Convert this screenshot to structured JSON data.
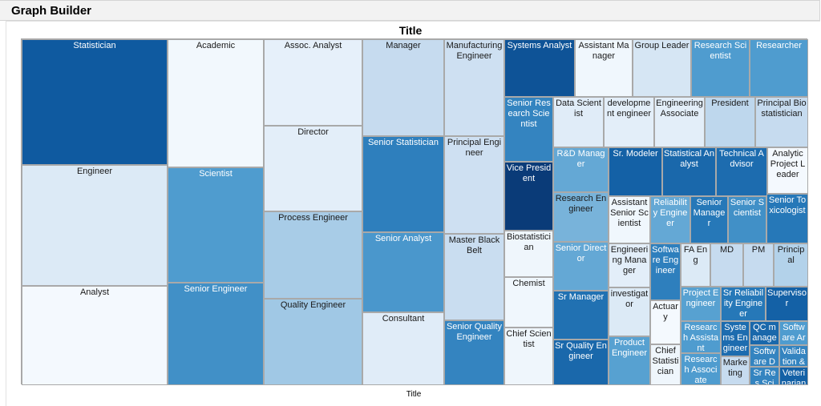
{
  "app": {
    "title": "Graph Builder"
  },
  "chart_data": {
    "type": "treemap",
    "title": "Title",
    "xlabel": "Title",
    "color_scale": {
      "low": "#f7fbff",
      "high": "#08306b"
    },
    "cells": [
      {
        "label": "Statistician",
        "value": 0.88
      },
      {
        "label": "Engineer",
        "value": 0.16
      },
      {
        "label": "Analyst",
        "value": 0.02
      },
      {
        "label": "Academic",
        "value": 0.03
      },
      {
        "label": "Scientist",
        "value": 0.6
      },
      {
        "label": "Senior Engineer",
        "value": 0.65
      },
      {
        "label": "Assoc. Analyst",
        "value": 0.1
      },
      {
        "label": "Director",
        "value": 0.12
      },
      {
        "label": "Process Engineer",
        "value": 0.38
      },
      {
        "label": "Quality Engineer",
        "value": 0.4
      },
      {
        "label": "Manager",
        "value": 0.3
      },
      {
        "label": "Senior Statistician",
        "value": 0.72
      },
      {
        "label": "Senior Analyst",
        "value": 0.62
      },
      {
        "label": "Consultant",
        "value": 0.14
      },
      {
        "label": "Manufacturing Engineer",
        "value": 0.25
      },
      {
        "label": "Principal Engineer",
        "value": 0.25
      },
      {
        "label": "Master Black Belt",
        "value": 0.28
      },
      {
        "label": "Senior Quality Engineer",
        "value": 0.7
      },
      {
        "label": "Systems Analyst",
        "value": 0.9
      },
      {
        "label": "Assistant Manager",
        "value": 0.04
      },
      {
        "label": "Group Leader",
        "value": 0.2
      },
      {
        "label": "Research Scientist",
        "value": 0.6
      },
      {
        "label": "Researcher",
        "value": 0.6
      },
      {
        "label": "Senior Research Scientist",
        "value": 0.7
      },
      {
        "label": "Data Scientist",
        "value": 0.14
      },
      {
        "label": "development engineer",
        "value": 0.12
      },
      {
        "label": "Engineering Associate",
        "value": 0.12
      },
      {
        "label": "President",
        "value": 0.32
      },
      {
        "label": "Principal Biostatistician",
        "value": 0.3
      },
      {
        "label": "Vice President",
        "value": 0.97
      },
      {
        "label": "R&D Manager",
        "value": 0.55
      },
      {
        "label": "Sr. Modeler",
        "value": 0.85
      },
      {
        "label": "Statistical Analyst",
        "value": 0.82
      },
      {
        "label": "Technical Advisor",
        "value": 0.8
      },
      {
        "label": "Analytic Project Leader",
        "value": 0.02
      },
      {
        "label": "Research Engineer",
        "value": 0.5
      },
      {
        "label": "Assistant Senior Scientist",
        "value": 0.04
      },
      {
        "label": "Reliability Engineer",
        "value": 0.55
      },
      {
        "label": "Senior Manager",
        "value": 0.75
      },
      {
        "label": "Senior Scientist",
        "value": 0.65
      },
      {
        "label": "Senior Toxicologist",
        "value": 0.75
      },
      {
        "label": "Biostatistician",
        "value": 0.05
      },
      {
        "label": "Senior Director",
        "value": 0.55
      },
      {
        "label": "Engineering Manager",
        "value": 0.12
      },
      {
        "label": "Software Engineer",
        "value": 0.72
      },
      {
        "label": "FA Eng",
        "value": 0.16
      },
      {
        "label": "MD",
        "value": 0.3
      },
      {
        "label": "PM",
        "value": 0.3
      },
      {
        "label": "Principal",
        "value": 0.35
      },
      {
        "label": "Chemist",
        "value": 0.04
      },
      {
        "label": "Sr Manager",
        "value": 0.78
      },
      {
        "label": "investigator",
        "value": 0.16
      },
      {
        "label": "Project Engineer",
        "value": 0.58
      },
      {
        "label": "Sr Reliability Engineer",
        "value": 0.75
      },
      {
        "label": "Supervisor",
        "value": 0.85
      },
      {
        "label": "Actuary",
        "value": 0.02
      },
      {
        "label": "Research Assistant",
        "value": 0.6
      },
      {
        "label": "Systems Engineer",
        "value": 0.8
      },
      {
        "label": "QC manager",
        "value": 0.82
      },
      {
        "label": "Software Architect",
        "value": 0.6
      },
      {
        "label": "Chief Scientist",
        "value": 0.05
      },
      {
        "label": "Sr Quality Engineer",
        "value": 0.82
      },
      {
        "label": "Product Engineer",
        "value": 0.58
      },
      {
        "label": "Software Developer",
        "value": 0.7
      },
      {
        "label": "Validation &",
        "value": 0.7
      },
      {
        "label": "Chief Statistician",
        "value": 0.05
      },
      {
        "label": "Research Associate",
        "value": 0.6
      },
      {
        "label": "Marketing",
        "value": 0.3
      },
      {
        "label": "Sr Res Sci",
        "value": 0.7
      },
      {
        "label": "Veterinarian",
        "value": 0.85
      }
    ]
  }
}
